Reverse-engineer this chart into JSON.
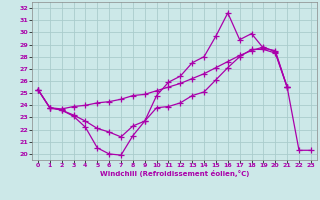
{
  "background_color": "#cce8e8",
  "grid_color": "#aacccc",
  "line_color": "#aa00aa",
  "marker": "+",
  "markersize": 4,
  "linewidth": 0.9,
  "xlabel": "Windchill (Refroidissement éolien,°C)",
  "xlim": [
    -0.5,
    23.5
  ],
  "ylim": [
    19.5,
    32.5
  ],
  "xticks": [
    0,
    1,
    2,
    3,
    4,
    5,
    6,
    7,
    8,
    9,
    10,
    11,
    12,
    13,
    14,
    15,
    16,
    17,
    18,
    19,
    20,
    21,
    22,
    23
  ],
  "yticks": [
    20,
    21,
    22,
    23,
    24,
    25,
    26,
    27,
    28,
    29,
    30,
    31,
    32
  ],
  "series": [
    [
      25.3,
      23.8,
      23.6,
      23.1,
      22.2,
      20.5,
      20.0,
      19.9,
      21.5,
      22.7,
      24.8,
      25.9,
      26.4,
      27.5,
      28.0,
      29.7,
      31.6,
      29.4,
      29.9,
      28.7,
      28.5,
      25.5,
      null,
      null
    ],
    [
      25.3,
      23.8,
      23.6,
      23.2,
      22.7,
      22.1,
      21.8,
      21.4,
      22.3,
      22.7,
      23.8,
      23.9,
      24.2,
      24.8,
      25.1,
      26.1,
      27.1,
      28.0,
      28.6,
      28.6,
      28.3,
      25.5,
      null,
      null
    ],
    [
      25.3,
      23.8,
      23.7,
      23.9,
      24.0,
      24.2,
      24.3,
      24.5,
      24.8,
      24.9,
      25.2,
      25.5,
      25.8,
      26.2,
      26.6,
      27.1,
      27.6,
      28.1,
      28.5,
      28.8,
      28.4,
      25.5,
      null,
      null
    ],
    [
      null,
      null,
      null,
      null,
      null,
      null,
      null,
      null,
      null,
      null,
      null,
      null,
      null,
      null,
      null,
      null,
      null,
      null,
      null,
      null,
      null,
      25.5,
      20.3,
      20.3
    ]
  ]
}
